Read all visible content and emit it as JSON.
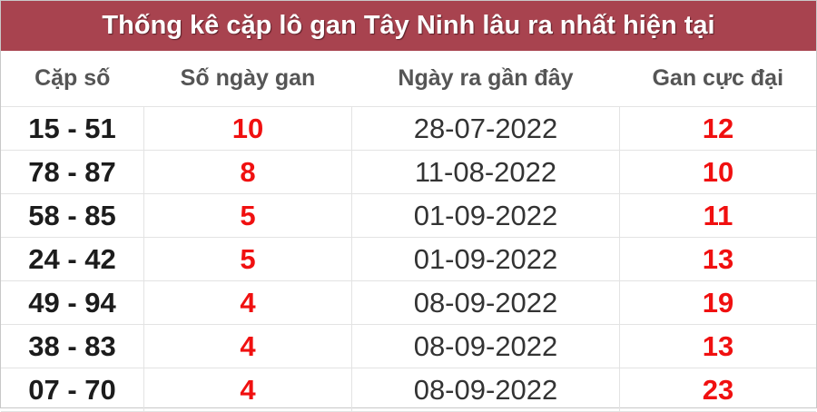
{
  "title": "Thống kê cặp lô gan Tây Ninh lâu ra nhất hiện tại",
  "colors": {
    "header_bg": "#a8434f",
    "highlight": "#f01010"
  },
  "columns": [
    "Cặp số",
    "Số ngày gan",
    "Ngày ra gần đây",
    "Gan cực đại"
  ],
  "rows": [
    {
      "pair": "15 - 51",
      "days": "10",
      "date": "28-07-2022",
      "max": "12"
    },
    {
      "pair": "78 - 87",
      "days": "8",
      "date": "11-08-2022",
      "max": "10"
    },
    {
      "pair": "58 - 85",
      "days": "5",
      "date": "01-09-2022",
      "max": "11"
    },
    {
      "pair": "24 - 42",
      "days": "5",
      "date": "01-09-2022",
      "max": "13"
    },
    {
      "pair": "49 - 94",
      "days": "4",
      "date": "08-09-2022",
      "max": "19"
    },
    {
      "pair": "38 - 83",
      "days": "4",
      "date": "08-09-2022",
      "max": "13"
    },
    {
      "pair": "07 - 70",
      "days": "4",
      "date": "08-09-2022",
      "max": "23"
    }
  ]
}
